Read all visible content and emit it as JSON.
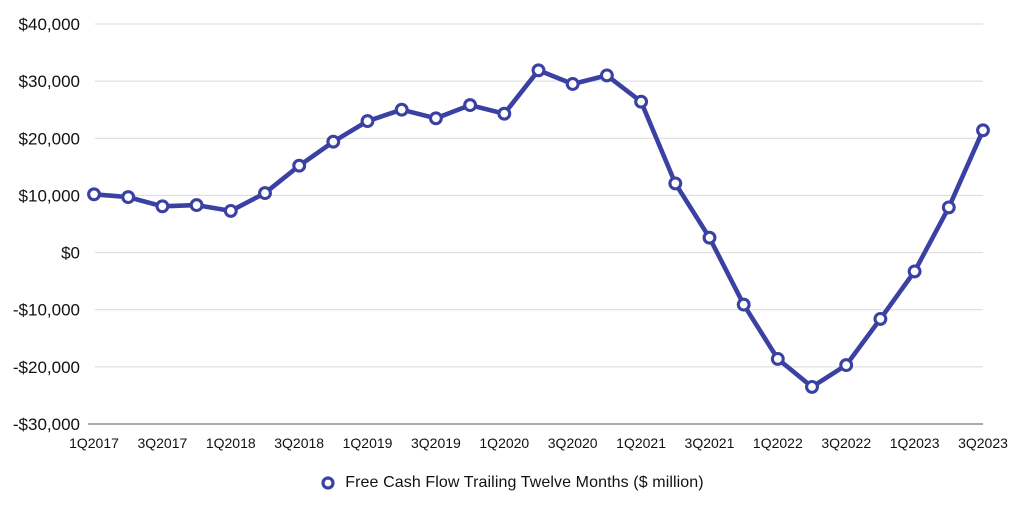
{
  "page": {
    "background": "#ffffff"
  },
  "chart_data": {
    "type": "line",
    "title": "",
    "xlabel": "",
    "ylabel": "",
    "ylim": [
      -30000,
      40000
    ],
    "y_tick_step": 10000,
    "grid": "horizontal-only",
    "legend_position": "bottom-center",
    "categories": [
      "1Q2017",
      "2Q2017",
      "3Q2017",
      "4Q2017",
      "1Q2018",
      "2Q2018",
      "3Q2018",
      "4Q2018",
      "1Q2019",
      "2Q2019",
      "3Q2019",
      "4Q2019",
      "1Q2020",
      "2Q2020",
      "3Q2020",
      "4Q2020",
      "1Q2021",
      "2Q2021",
      "3Q2021",
      "4Q2021",
      "1Q2022",
      "2Q2022",
      "3Q2022",
      "4Q2022",
      "1Q2023",
      "2Q2023",
      "3Q2023"
    ],
    "x_tick_every": 2,
    "x_tick_labels": [
      "1Q2017",
      "3Q2017",
      "1Q2018",
      "3Q2018",
      "1Q2019",
      "3Q2019",
      "1Q2020",
      "3Q2020",
      "1Q2021",
      "3Q2021",
      "1Q2022",
      "3Q2022",
      "1Q2023",
      "3Q2023"
    ],
    "y_ticks": [
      {
        "value": 40000,
        "label": "$40,000"
      },
      {
        "value": 30000,
        "label": "$30,000"
      },
      {
        "value": 20000,
        "label": "$20,000"
      },
      {
        "value": 10000,
        "label": "$10,000"
      },
      {
        "value": 0,
        "label": "$0"
      },
      {
        "value": -10000,
        "label": "-$10,000"
      },
      {
        "value": -20000,
        "label": "-$20,000"
      },
      {
        "value": -30000,
        "label": "-$30,000"
      }
    ],
    "series": [
      {
        "name": "Free Cash Flow Trailing Twelve Months ($ million)",
        "color": "#3A41A3",
        "marker": "open-circle",
        "values": [
          10200,
          9700,
          8100,
          8300,
          7300,
          10400,
          15200,
          19400,
          23000,
          25000,
          23500,
          25800,
          24300,
          31900,
          29500,
          31000,
          26400,
          12100,
          2600,
          -9100,
          -18600,
          -23500,
          -19700,
          -11600,
          -3300,
          7900,
          21400
        ]
      }
    ],
    "colors": {
      "line": "#3A41A3",
      "marker_fill": "#FFFFFF",
      "gridline": "#D9D9D9",
      "axis_line": "#ABABAB",
      "text": "#111111",
      "background": "#FFFFFF"
    }
  },
  "legend": {
    "label": "Free Cash Flow Trailing Twelve Months ($ million)"
  }
}
